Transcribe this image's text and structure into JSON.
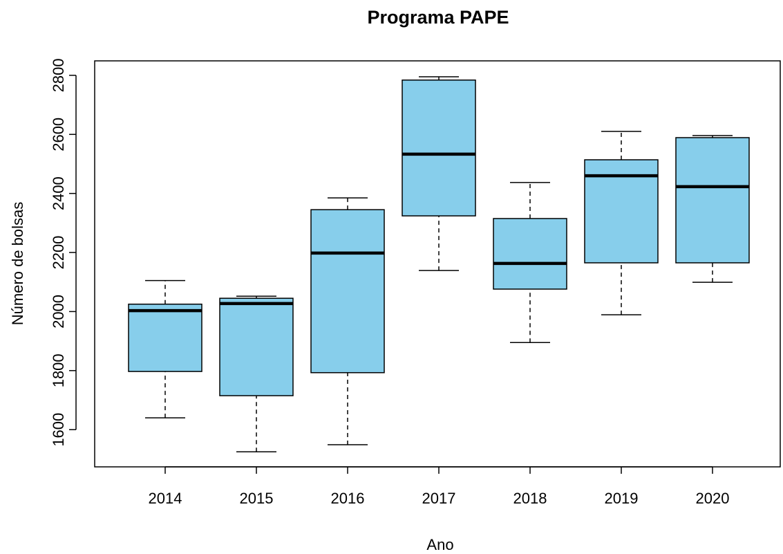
{
  "chart_data": {
    "type": "box",
    "title": "Programa PAPE",
    "x_label": "Ano",
    "y_label": "Número de bolsas",
    "categories": [
      "2014",
      "2015",
      "2016",
      "2017",
      "2018",
      "2019",
      "2020"
    ],
    "color": "#87ceeb",
    "series": [
      {
        "name": "whisker_low",
        "values": [
          1640,
          1525,
          1549,
          2139,
          1895,
          1989,
          2099
        ]
      },
      {
        "name": "q1",
        "values": [
          1797,
          1715,
          1793,
          2324,
          2076,
          2165,
          2165
        ]
      },
      {
        "name": "median",
        "values": [
          2003,
          2027,
          2198,
          2533,
          2163,
          2460,
          2423
        ]
      },
      {
        "name": "q3",
        "values": [
          2025,
          2045,
          2345,
          2784,
          2315,
          2514,
          2589
        ]
      },
      {
        "name": "whisker_high",
        "values": [
          2105,
          2052,
          2385,
          2795,
          2437,
          2610,
          2596
        ]
      }
    ],
    "ylim": [
      1474,
      2849
    ],
    "yticks": [
      1600,
      1800,
      2000,
      2200,
      2400,
      2600,
      2800
    ]
  }
}
